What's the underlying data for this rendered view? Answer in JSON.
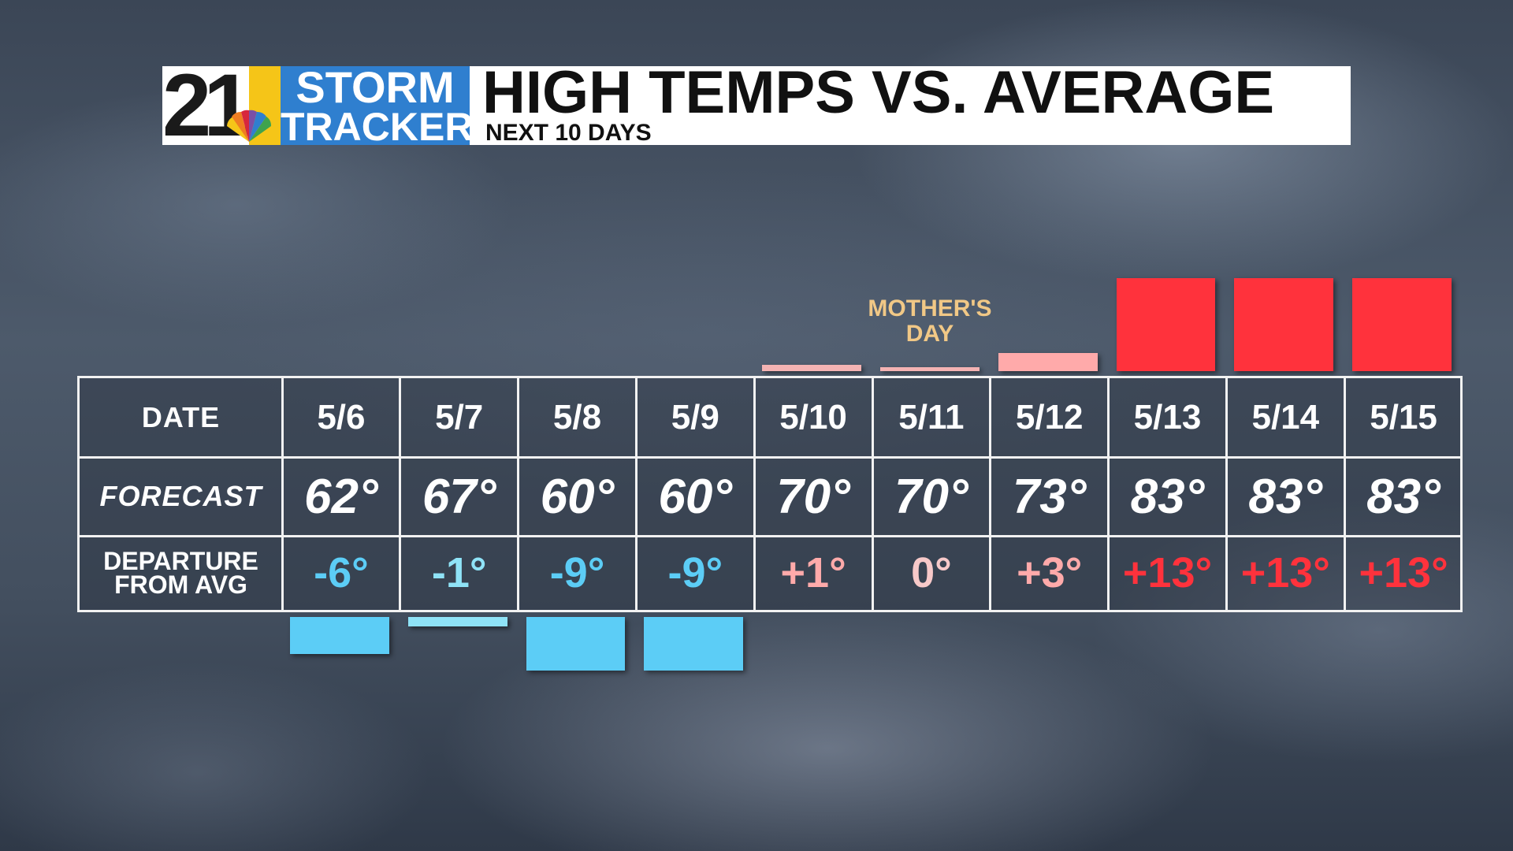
{
  "header": {
    "logo_number": "21",
    "logo_top": "STORM",
    "logo_bottom": "TRACKER",
    "title": "HIGH TEMPS VS. AVERAGE",
    "subtitle": "NEXT 10 DAYS"
  },
  "row_labels": {
    "date": "DATE",
    "forecast": "FORECAST",
    "departure_line1": "DEPARTURE",
    "departure_line2": "FROM AVG"
  },
  "annotation": {
    "line1": "MOTHER'S",
    "line2": "DAY"
  },
  "colors": {
    "cold": "#5ccdf6",
    "cold_small": "#8fe3f7",
    "warm_small": "#f4b3b3",
    "warm": "#ffaaaa",
    "hot": "#ff323c",
    "neutral_text": "#f7c9c9"
  },
  "chart_data": {
    "type": "bar",
    "categories": [
      "5/6",
      "5/7",
      "5/8",
      "5/9",
      "5/10",
      "5/11",
      "5/12",
      "5/13",
      "5/14",
      "5/15"
    ],
    "forecast_labels": [
      "62°",
      "67°",
      "60°",
      "60°",
      "70°",
      "70°",
      "73°",
      "83°",
      "83°",
      "83°"
    ],
    "departure_labels": [
      "-6°",
      "-1°",
      "-9°",
      "-9°",
      "+1°",
      "0°",
      "+3°",
      "+13°",
      "+13°",
      "+13°"
    ],
    "series": [
      {
        "values": [
          -6,
          -1,
          -9,
          -9,
          1,
          0,
          3,
          13,
          13,
          13
        ]
      }
    ],
    "title": "HIGH TEMPS VS. AVERAGE",
    "ylim": [
      -9,
      13
    ]
  }
}
